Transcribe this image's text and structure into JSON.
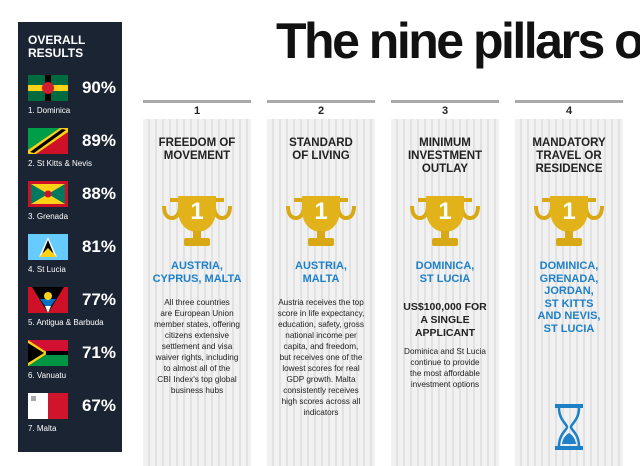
{
  "title": "The nine pillars of",
  "sidebar": {
    "heading": [
      "OVERALL",
      "RESULTS"
    ],
    "items": [
      {
        "score": "90%",
        "label": "1. Dominica"
      },
      {
        "score": "89%",
        "label": "2. St Kitts & Nevis"
      },
      {
        "score": "88%",
        "label": "3. Grenada"
      },
      {
        "score": "81%",
        "label": "4. St Lucia"
      },
      {
        "score": "77%",
        "label": "5. Antigua & Barbuda"
      },
      {
        "score": "71%",
        "label": "6. Vanuatu"
      },
      {
        "score": "67%",
        "label": "7. Malta"
      }
    ]
  },
  "columns": [
    {
      "number": "1",
      "heading": [
        "FREEDOM OF",
        "MOVEMENT"
      ],
      "rank": "1",
      "winners": [
        "AUSTRIA,",
        "CYPRUS, MALTA"
      ],
      "subheading": [],
      "text": [
        "All three countries",
        "are European Union",
        "member states, offering",
        "citizens extensive",
        "settlement and visa",
        "waiver rights, including",
        "to almost all of the",
        "CBI Index's top global",
        "business hubs"
      ]
    },
    {
      "number": "2",
      "heading": [
        "STANDARD",
        "OF LIVING"
      ],
      "rank": "1",
      "winners": [
        "AUSTRIA,",
        "MALTA"
      ],
      "subheading": [],
      "text": [
        "Austria receives the top",
        "score in life expectancy,",
        "education, safety, gross",
        "national income per",
        "capita, and freedom,",
        "but receives one of the",
        "lowest scores for real",
        "GDP growth. Malta",
        "consistently receives",
        "high scores across all",
        "indicators"
      ]
    },
    {
      "number": "3",
      "heading": [
        "MINIMUM",
        "INVESTMENT",
        "OUTLAY"
      ],
      "rank": "1",
      "winners": [
        "DOMINICA,",
        "ST LUCIA"
      ],
      "subheading": [
        "US$100,000 FOR",
        "A SINGLE",
        "APPLICANT"
      ],
      "text": [
        "Dominica and St Lucia",
        "continue to provide",
        "the most affordable",
        "investment options"
      ]
    },
    {
      "number": "4",
      "heading": [
        "MANDATORY",
        "TRAVEL OR",
        "RESIDENCE"
      ],
      "rank": "1",
      "winners": [
        "DOMINICA,",
        "GRENADA,",
        "JORDAN,",
        "ST KITTS",
        "AND NEVIS,",
        "ST LUCIA"
      ],
      "subheading": [],
      "text": []
    }
  ]
}
